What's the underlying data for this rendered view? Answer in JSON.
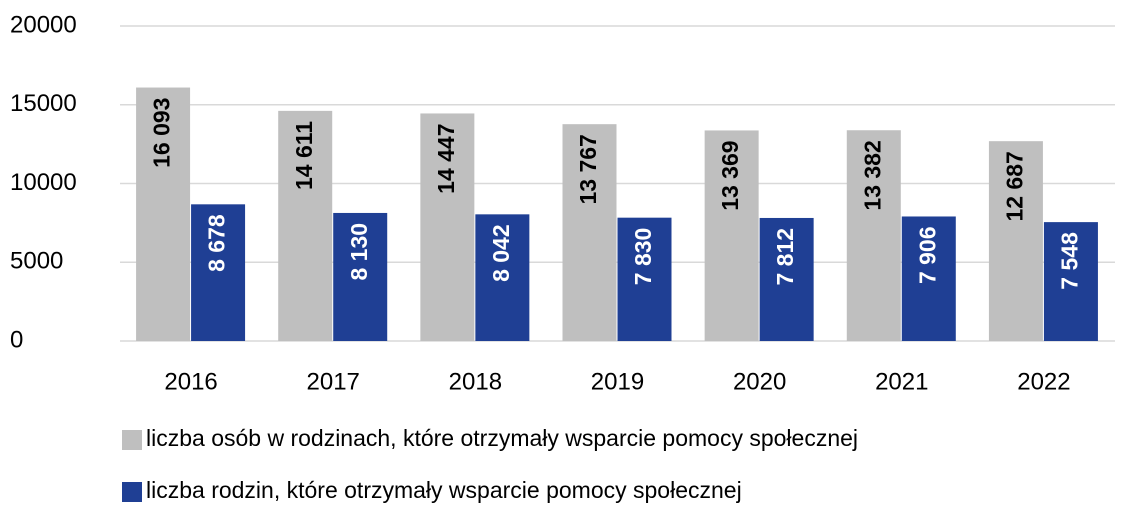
{
  "chart_data": {
    "type": "bar",
    "categories": [
      "2016",
      "2017",
      "2018",
      "2019",
      "2020",
      "2021",
      "2022"
    ],
    "series": [
      {
        "name": "liczba osób w rodzinach, które otrzymały wsparcie pomocy społecznej",
        "color": "#bfbfbf",
        "label_color": "#000000",
        "values": [
          16093,
          14611,
          14447,
          13767,
          13369,
          13382,
          12687
        ],
        "value_labels": [
          "16 093",
          "14 611",
          "14 447",
          "13 767",
          "13 369",
          "13 382",
          "12 687"
        ]
      },
      {
        "name": "liczba rodzin, które otrzymały wsparcie pomocy społecznej",
        "color": "#1f3f94",
        "label_color": "#ffffff",
        "values": [
          8678,
          8130,
          8042,
          7830,
          7812,
          7906,
          7548
        ],
        "value_labels": [
          "8 678",
          "8 130",
          "8 042",
          "7 830",
          "7 812",
          "7 906",
          "7 548"
        ]
      }
    ],
    "ylim": [
      0,
      20000
    ],
    "yticks": [
      0,
      5000,
      10000,
      15000,
      20000
    ],
    "grid": true,
    "legend": "bottom"
  }
}
